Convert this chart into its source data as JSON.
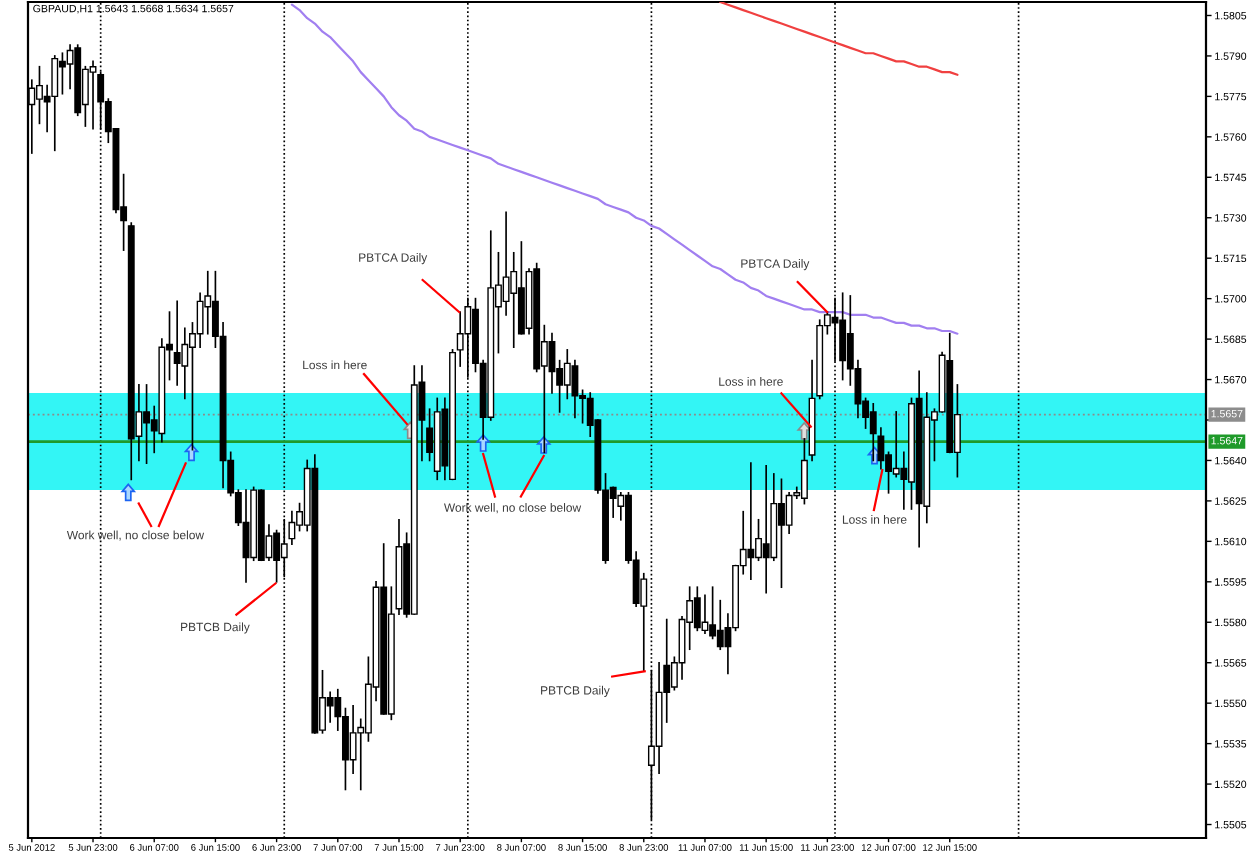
{
  "chart_data": {
    "type": "candlestick",
    "title": "GBPAUD,H1 1.5643 1.5668 1.5634 1.5657",
    "categories": [
      "5 Jun 2012",
      null,
      null,
      null,
      null,
      null,
      null,
      null,
      "5 Jun 23:00",
      null,
      null,
      null,
      null,
      null,
      null,
      null,
      "6 Jun 07:00",
      null,
      null,
      null,
      null,
      null,
      null,
      null,
      "6 Jun 15:00",
      null,
      null,
      null,
      null,
      null,
      null,
      null,
      "6 Jun 23:00",
      null,
      null,
      null,
      null,
      null,
      null,
      null,
      "7 Jun 07:00",
      null,
      null,
      null,
      null,
      null,
      null,
      null,
      "7 Jun 15:00",
      null,
      null,
      null,
      null,
      null,
      null,
      null,
      "7 Jun 23:00",
      null,
      null,
      null,
      null,
      null,
      null,
      null,
      "8 Jun 07:00",
      null,
      null,
      null,
      null,
      null,
      null,
      null,
      "8 Jun 15:00",
      null,
      null,
      null,
      null,
      null,
      null,
      null,
      "8 Jun 23:00",
      null,
      null,
      null,
      null,
      null,
      null,
      null,
      "11 Jun 07:00",
      null,
      null,
      null,
      null,
      null,
      null,
      null,
      "11 Jun 15:00",
      null,
      null,
      null,
      null,
      null,
      null,
      null,
      "11 Jun 23:00",
      null,
      null,
      null,
      null,
      null,
      null,
      null,
      "12 Jun 07:00",
      null,
      null,
      null,
      null,
      null,
      null,
      null,
      "12 Jun 15:00",
      null,
      null,
      null,
      null,
      null,
      null,
      null,
      null,
      null,
      null,
      null,
      null,
      null,
      null,
      null,
      null,
      null,
      null,
      null,
      null,
      null,
      null,
      null,
      null,
      null,
      null,
      null,
      null,
      null,
      null,
      null,
      null,
      null
    ],
    "ohlc": [
      [
        1.5772,
        1.5781,
        1.5754,
        1.5778
      ],
      [
        1.5774,
        1.5786,
        1.5765,
        1.5779
      ],
      [
        1.5775,
        1.5779,
        1.5762,
        1.5773
      ],
      [
        1.5775,
        1.579,
        1.5755,
        1.5789
      ],
      [
        1.5788,
        1.5791,
        1.5776,
        1.5786
      ],
      [
        1.5787,
        1.5794,
        1.5778,
        1.5792
      ],
      [
        1.5793,
        1.5794,
        1.5768,
        1.5769
      ],
      [
        1.5772,
        1.5786,
        1.5764,
        1.5785
      ],
      [
        1.5784,
        1.5788,
        1.5763,
        1.5786
      ],
      [
        1.5783,
        1.5784,
        1.5763,
        1.5773
      ],
      [
        1.5773,
        1.5774,
        1.5758,
        1.5762
      ],
      [
        1.5763,
        1.5763,
        1.5732,
        1.5733
      ],
      [
        1.5734,
        1.5746,
        1.5718,
        1.5729
      ],
      [
        1.5727,
        1.5728,
        1.5633,
        1.5648
      ],
      [
        1.5649,
        1.5668,
        1.564,
        1.5658
      ],
      [
        1.5658,
        1.5668,
        1.5639,
        1.5654
      ],
      [
        1.5655,
        1.566,
        1.5643,
        1.5651
      ],
      [
        1.565,
        1.5685,
        1.5647,
        1.5682
      ],
      [
        1.5683,
        1.5695,
        1.567,
        1.5681
      ],
      [
        1.568,
        1.5699,
        1.5668,
        1.5676
      ],
      [
        1.5675,
        1.5689,
        1.5663,
        1.5683
      ],
      [
        1.5682,
        1.5691,
        1.5644,
        1.5687
      ],
      [
        1.5687,
        1.5702,
        1.5682,
        1.5699
      ],
      [
        1.5697,
        1.571,
        1.5687,
        1.5701
      ],
      [
        1.5699,
        1.571,
        1.5682,
        1.5686
      ],
      [
        1.5686,
        1.5691,
        1.563,
        1.564
      ],
      [
        1.564,
        1.5643,
        1.5627,
        1.5628
      ],
      [
        1.5628,
        1.5629,
        1.5616,
        1.5617
      ],
      [
        1.5617,
        1.5629,
        1.5595,
        1.5604
      ],
      [
        1.5604,
        1.563,
        1.5603,
        1.5629
      ],
      [
        1.5629,
        1.5629,
        1.5603,
        1.5603
      ],
      [
        1.5604,
        1.5616,
        1.5603,
        1.5612
      ],
      [
        1.5613,
        1.5614,
        1.5595,
        1.5603
      ],
      [
        1.5604,
        1.5618,
        1.5597,
        1.5609
      ],
      [
        1.5611,
        1.5621,
        1.5609,
        1.5617
      ],
      [
        1.5616,
        1.5624,
        1.5614,
        1.5621
      ],
      [
        1.5616,
        1.564,
        1.5614,
        1.5637
      ],
      [
        1.5637,
        1.5642,
        1.5539,
        1.5539
      ],
      [
        1.554,
        1.5562,
        1.5539,
        1.5552
      ],
      [
        1.5552,
        1.5554,
        1.5543,
        1.5549
      ],
      [
        1.5552,
        1.5555,
        1.554,
        1.5545
      ],
      [
        1.5545,
        1.5548,
        1.5518,
        1.5529
      ],
      [
        1.5529,
        1.5549,
        1.5524,
        1.5539
      ],
      [
        1.5539,
        1.5544,
        1.5518,
        1.5541
      ],
      [
        1.5539,
        1.5567,
        1.5536,
        1.5557
      ],
      [
        1.5556,
        1.5595,
        1.5551,
        1.5593
      ],
      [
        1.5593,
        1.5609,
        1.5546,
        1.5546
      ],
      [
        1.5546,
        1.5593,
        1.5544,
        1.5583
      ],
      [
        1.5585,
        1.5618,
        1.5583,
        1.5608
      ],
      [
        1.5609,
        1.5613,
        1.5582,
        1.5583
      ],
      [
        1.5583,
        1.5675,
        1.5583,
        1.5668
      ],
      [
        1.5669,
        1.5675,
        1.564,
        1.5655
      ],
      [
        1.5652,
        1.5659,
        1.564,
        1.5643
      ],
      [
        1.5636,
        1.5663,
        1.5633,
        1.5658
      ],
      [
        1.5659,
        1.5663,
        1.5633,
        1.5638
      ],
      [
        1.5633,
        1.5681,
        1.5633,
        1.568
      ],
      [
        1.5681,
        1.5695,
        1.5675,
        1.5687
      ],
      [
        1.5687,
        1.57,
        1.5671,
        1.5697
      ],
      [
        1.5696,
        1.57,
        1.5673,
        1.5676
      ],
      [
        1.5676,
        1.5677,
        1.5648,
        1.5656
      ],
      [
        1.5656,
        1.5725,
        1.5655,
        1.5704
      ],
      [
        1.5697,
        1.5717,
        1.568,
        1.5705
      ],
      [
        1.5699,
        1.5732,
        1.5694,
        1.5708
      ],
      [
        1.5702,
        1.5717,
        1.5682,
        1.571
      ],
      [
        1.5704,
        1.5721,
        1.5687,
        1.5687
      ],
      [
        1.5689,
        1.5711,
        1.5687,
        1.571
      ],
      [
        1.5711,
        1.5713,
        1.5673,
        1.5674
      ],
      [
        1.5675,
        1.569,
        1.5643,
        1.5684
      ],
      [
        1.5684,
        1.5687,
        1.5665,
        1.5673
      ],
      [
        1.5674,
        1.5677,
        1.5658,
        1.5668
      ],
      [
        1.5668,
        1.5681,
        1.5663,
        1.5676
      ],
      [
        1.5675,
        1.5677,
        1.5656,
        1.5664
      ],
      [
        1.5664,
        1.5666,
        1.5654,
        1.5663
      ],
      [
        1.5663,
        1.5665,
        1.5649,
        1.5653
      ],
      [
        1.5655,
        1.5655,
        1.5628,
        1.5629
      ],
      [
        1.5629,
        1.5635,
        1.5602,
        1.5603
      ],
      [
        1.563,
        1.563,
        1.5619,
        1.5626
      ],
      [
        1.5623,
        1.5628,
        1.5618,
        1.5627
      ],
      [
        1.5627,
        1.5628,
        1.5602,
        1.5603
      ],
      [
        1.5603,
        1.5606,
        1.5586,
        1.5587
      ],
      [
        1.5586,
        1.5598,
        1.5562,
        1.5596
      ],
      [
        1.5527,
        1.5562,
        1.5507,
        1.5534
      ],
      [
        1.5534,
        1.5565,
        1.5524,
        1.5554
      ],
      [
        1.5564,
        1.5581,
        1.5543,
        1.5554
      ],
      [
        1.5556,
        1.5567,
        1.5555,
        1.5565
      ],
      [
        1.5565,
        1.5582,
        1.5559,
        1.5581
      ],
      [
        1.558,
        1.5593,
        1.557,
        1.5588
      ],
      [
        1.5589,
        1.5593,
        1.5577,
        1.5578
      ],
      [
        1.5577,
        1.559,
        1.5576,
        1.558
      ],
      [
        1.5579,
        1.5593,
        1.5574,
        1.5575
      ],
      [
        1.5577,
        1.5588,
        1.557,
        1.5571
      ],
      [
        1.5578,
        1.5583,
        1.5561,
        1.5571
      ],
      [
        1.5578,
        1.5601,
        1.5577,
        1.5601
      ],
      [
        1.5601,
        1.5621,
        1.5598,
        1.5607
      ],
      [
        1.5607,
        1.5639,
        1.5596,
        1.5604
      ],
      [
        1.5604,
        1.5618,
        1.5603,
        1.5611
      ],
      [
        1.5609,
        1.5638,
        1.5591,
        1.5604
      ],
      [
        1.5604,
        1.5635,
        1.5603,
        1.5624
      ],
      [
        1.5624,
        1.5633,
        1.5593,
        1.5616
      ],
      [
        1.5616,
        1.5628,
        1.5613,
        1.5627
      ],
      [
        1.5627,
        1.563,
        1.5626,
        1.5628
      ],
      [
        1.5626,
        1.5648,
        1.5624,
        1.564
      ],
      [
        1.5642,
        1.5677,
        1.564,
        1.5663
      ],
      [
        1.5664,
        1.5692,
        1.5663,
        1.569
      ],
      [
        1.569,
        1.5695,
        1.5687,
        1.5694
      ],
      [
        1.5693,
        1.57,
        1.5677,
        1.5691
      ],
      [
        1.5692,
        1.5702,
        1.567,
        1.5677
      ],
      [
        1.5687,
        1.5701,
        1.5668,
        1.5674
      ],
      [
        1.5674,
        1.5677,
        1.5656,
        1.5661
      ],
      [
        1.5662,
        1.5663,
        1.5652,
        1.5656
      ],
      [
        1.5658,
        1.5661,
        1.564,
        1.565
      ],
      [
        1.5649,
        1.5652,
        1.5637,
        1.564
      ],
      [
        1.5642,
        1.5643,
        1.5628,
        1.5636
      ],
      [
        1.5635,
        1.5658,
        1.5634,
        1.5637
      ],
      [
        1.5637,
        1.5643,
        1.5622,
        1.5633
      ],
      [
        1.5632,
        1.5663,
        1.5622,
        1.5661
      ],
      [
        1.5663,
        1.5673,
        1.5608,
        1.5624
      ],
      [
        1.5623,
        1.5665,
        1.5617,
        1.5656
      ],
      [
        1.5655,
        1.5659,
        1.564,
        1.5658
      ],
      [
        1.5658,
        1.568,
        1.5658,
        1.5679
      ],
      [
        1.5677,
        1.5687,
        1.5643,
        1.5643
      ],
      [
        1.5643,
        1.5668,
        1.5634,
        1.5657
      ],
      null,
      null,
      null,
      null,
      null,
      null,
      null,
      null,
      null,
      null,
      null,
      null,
      null,
      null,
      null,
      null,
      null,
      null,
      null,
      null,
      null,
      null,
      null,
      null,
      null,
      null,
      null,
      null,
      null,
      null,
      null,
      null
    ],
    "series": [
      {
        "type": "line",
        "color": "#a17ff0",
        "values": [
          null,
          null,
          null,
          null,
          null,
          null,
          null,
          null,
          null,
          null,
          null,
          null,
          null,
          null,
          null,
          null,
          null,
          null,
          null,
          null,
          null,
          null,
          null,
          null,
          null,
          null,
          null,
          null,
          null,
          null,
          null,
          null,
          null,
          null,
          1.5809,
          1.5807,
          1.5804,
          1.5802,
          1.5799,
          1.5797,
          1.5794,
          1.5791,
          1.5788,
          1.5784,
          1.5781,
          1.5778,
          1.5775,
          1.5771,
          1.5768,
          1.5766,
          1.5763,
          1.5762,
          1.576,
          1.5759,
          1.5758,
          1.5757,
          1.5756,
          1.5755,
          1.5754,
          1.5753,
          1.5752,
          1.575,
          1.5749,
          1.5748,
          1.5747,
          1.5746,
          1.5745,
          1.5744,
          1.5743,
          1.5742,
          1.5741,
          1.574,
          1.5739,
          1.5738,
          1.5737,
          1.5735,
          1.5734,
          1.5733,
          1.5732,
          1.573,
          1.5729,
          1.5727,
          1.5726,
          1.5724,
          1.5722,
          1.572,
          1.5718,
          1.5716,
          1.5714,
          1.5712,
          1.5711,
          1.5709,
          1.5707,
          1.5706,
          1.5704,
          1.5703,
          1.5701,
          1.57,
          1.5699,
          1.5698,
          1.5697,
          1.5696,
          1.5696,
          1.5695,
          1.5695,
          1.5695,
          1.5695,
          1.5694,
          1.5694,
          1.5694,
          1.5693,
          1.5693,
          1.5692,
          1.5691,
          1.5691,
          1.569,
          1.569,
          1.5689,
          1.5689,
          1.5688,
          1.5688,
          1.5687,
          null,
          null,
          null,
          null,
          null,
          null,
          null,
          null,
          null,
          null,
          null,
          null,
          null,
          null,
          null,
          null,
          null,
          null,
          null,
          null,
          null,
          null,
          null,
          null,
          null,
          null,
          null,
          null,
          null,
          null,
          null,
          null
        ]
      },
      {
        "type": "line",
        "color": "#f04040",
        "values": [
          null,
          null,
          null,
          null,
          null,
          null,
          null,
          null,
          null,
          null,
          null,
          null,
          null,
          null,
          null,
          null,
          null,
          null,
          null,
          null,
          null,
          null,
          null,
          null,
          null,
          null,
          null,
          null,
          null,
          null,
          null,
          null,
          null,
          null,
          null,
          null,
          null,
          null,
          null,
          null,
          null,
          null,
          null,
          null,
          null,
          null,
          null,
          null,
          null,
          null,
          null,
          null,
          null,
          null,
          null,
          null,
          null,
          null,
          null,
          null,
          null,
          null,
          null,
          null,
          null,
          null,
          null,
          null,
          null,
          null,
          null,
          null,
          null,
          null,
          null,
          null,
          null,
          null,
          null,
          null,
          null,
          null,
          null,
          null,
          null,
          null,
          null,
          null,
          null,
          null,
          1.581,
          1.5809,
          1.5808,
          1.5807,
          1.5806,
          1.5805,
          1.5804,
          1.5803,
          1.5802,
          1.5801,
          1.58,
          1.5799,
          1.5798,
          1.5797,
          1.5796,
          1.5795,
          1.5794,
          1.5793,
          1.5792,
          1.5791,
          1.5791,
          1.579,
          1.5789,
          1.5788,
          1.5788,
          1.5787,
          1.5786,
          1.5786,
          1.5785,
          1.5784,
          1.5784,
          1.5783,
          null,
          null,
          null,
          null,
          null,
          null,
          null,
          null,
          null,
          null,
          null,
          null,
          null,
          null,
          null,
          null,
          null,
          null,
          null,
          null,
          null,
          null,
          null,
          null,
          null,
          null,
          null,
          null,
          null,
          null,
          null,
          null
        ]
      }
    ],
    "ylim": [
      1.55,
      1.581
    ],
    "yticks": [
      1.5505,
      {
        "value": 1.552,
        "label": "1.5520"
      },
      1.5535,
      {
        "value": 1.555,
        "label": "1.5550"
      },
      1.5565,
      {
        "value": 1.558,
        "label": "1.5580"
      },
      1.5595,
      {
        "value": 1.561,
        "label": "1.5610"
      },
      1.5625,
      {
        "value": 1.564,
        "label": "1.5640"
      },
      {
        "value": 1.5655,
        "label": null
      },
      {
        "value": 1.567,
        "label": "1.5670"
      },
      1.5685,
      {
        "value": 1.57,
        "label": "1.5700"
      },
      1.5715,
      {
        "value": 1.573,
        "label": "1.5730"
      },
      1.5745,
      {
        "value": 1.576,
        "label": "1.5760"
      },
      1.5775,
      {
        "value": 1.579,
        "label": "1.5790"
      },
      1.5805
    ],
    "bands": [
      {
        "axis": "y",
        "from": 1.5629,
        "to": 1.5665,
        "color": "#33f5f5"
      }
    ],
    "ref_lines": [
      {
        "axis": "y",
        "value": 1.5657,
        "label": "1.5657",
        "color": "#8c8c8c",
        "line_style": "dotted"
      },
      {
        "axis": "y",
        "value": 1.5647,
        "label": "1.5647",
        "color": "#1f9a2a",
        "line_style": "solid"
      }
    ],
    "annotations": [
      "Work well, no close below",
      "PBTCB Daily",
      "Loss in here",
      "PBTCA Daily",
      "Work well, no close below",
      "PBTCB Daily",
      "Loss in here",
      "PBTCA Daily",
      "Loss in here"
    ]
  }
}
